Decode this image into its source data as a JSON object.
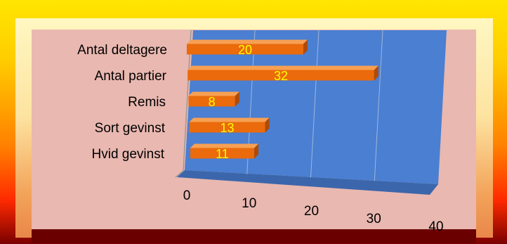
{
  "chart_data": {
    "type": "bar",
    "orientation": "horizontal",
    "categories": [
      "Antal deltagere",
      "Antal partier",
      "Remis",
      "Sort gevinst",
      "Hvid gevinst"
    ],
    "values": [
      20,
      32,
      8,
      13,
      11
    ],
    "xticks": [
      "0",
      "10",
      "20",
      "30",
      "40"
    ],
    "xlim": [
      0,
      40
    ],
    "title": "",
    "xlabel": "",
    "ylabel": "",
    "grid": true,
    "colors": {
      "bar": "#ea6a0c",
      "bar_top": "#f7a052",
      "bar_side": "#b04a05",
      "wall": "#4c7fd0",
      "floor": "#3d69ad",
      "value_label": "#ffff00"
    }
  }
}
